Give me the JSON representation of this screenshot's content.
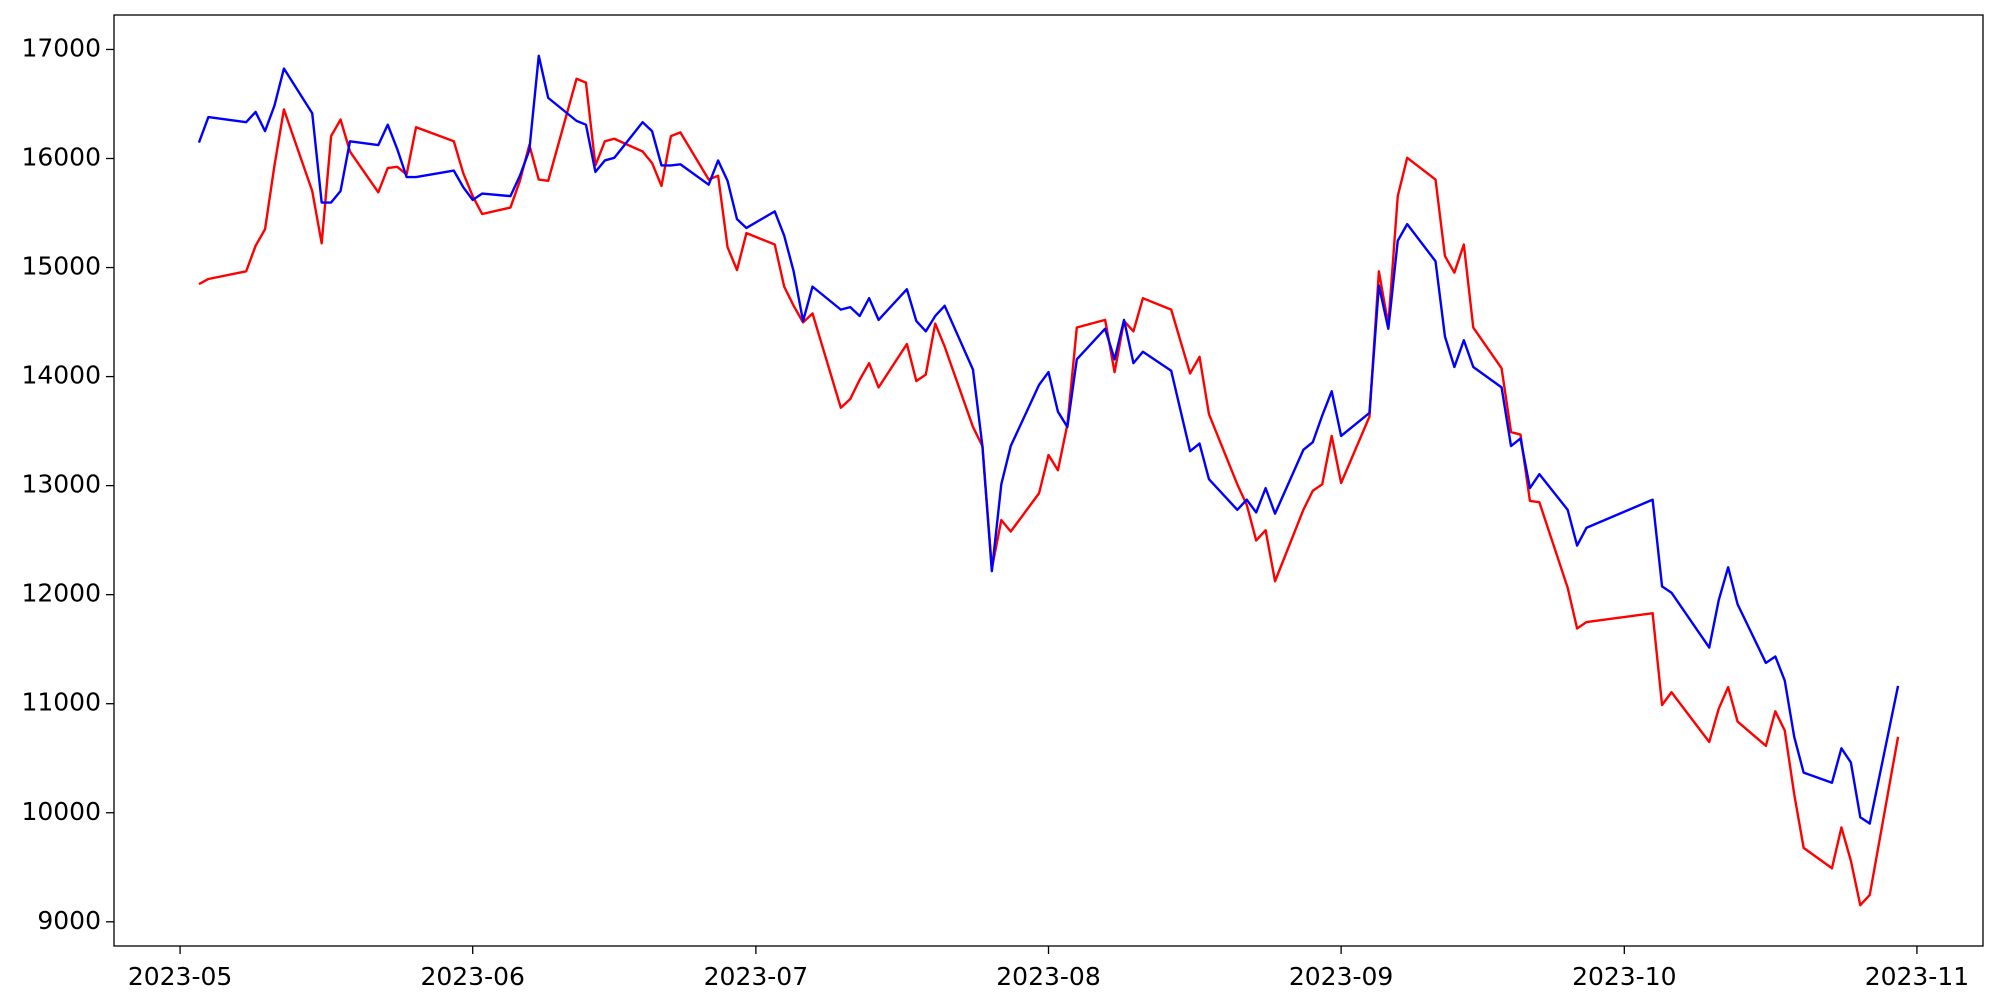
{
  "chart_data": {
    "type": "line",
    "x": [
      "2023-05-03",
      "2023-05-04",
      "2023-05-08",
      "2023-05-09",
      "2023-05-10",
      "2023-05-11",
      "2023-05-12",
      "2023-05-15",
      "2023-05-16",
      "2023-05-17",
      "2023-05-18",
      "2023-05-19",
      "2023-05-22",
      "2023-05-23",
      "2023-05-24",
      "2023-05-25",
      "2023-05-26",
      "2023-05-30",
      "2023-05-31",
      "2023-06-01",
      "2023-06-02",
      "2023-06-05",
      "2023-06-06",
      "2023-06-07",
      "2023-06-08",
      "2023-06-09",
      "2023-06-12",
      "2023-06-13",
      "2023-06-14",
      "2023-06-15",
      "2023-06-16",
      "2023-06-19",
      "2023-06-20",
      "2023-06-21",
      "2023-06-22",
      "2023-06-23",
      "2023-06-26",
      "2023-06-27",
      "2023-06-28",
      "2023-06-29",
      "2023-06-30",
      "2023-07-03",
      "2023-07-04",
      "2023-07-05",
      "2023-07-06",
      "2023-07-07",
      "2023-07-10",
      "2023-07-11",
      "2023-07-12",
      "2023-07-13",
      "2023-07-14",
      "2023-07-17",
      "2023-07-18",
      "2023-07-19",
      "2023-07-20",
      "2023-07-21",
      "2023-07-24",
      "2023-07-25",
      "2023-07-26",
      "2023-07-27",
      "2023-07-28",
      "2023-07-31",
      "2023-08-01",
      "2023-08-02",
      "2023-08-03",
      "2023-08-04",
      "2023-08-07",
      "2023-08-08",
      "2023-08-09",
      "2023-08-10",
      "2023-08-11",
      "2023-08-14",
      "2023-08-16",
      "2023-08-17",
      "2023-08-18",
      "2023-08-21",
      "2023-08-22",
      "2023-08-23",
      "2023-08-24",
      "2023-08-25",
      "2023-08-28",
      "2023-08-29",
      "2023-08-30",
      "2023-08-31",
      "2023-09-01",
      "2023-09-04",
      "2023-09-05",
      "2023-09-06",
      "2023-09-07",
      "2023-09-08",
      "2023-09-11",
      "2023-09-12",
      "2023-09-13",
      "2023-09-14",
      "2023-09-15",
      "2023-09-18",
      "2023-09-19",
      "2023-09-20",
      "2023-09-21",
      "2023-09-22",
      "2023-09-25",
      "2023-09-26",
      "2023-09-27",
      "2023-10-04",
      "2023-10-05",
      "2023-10-06",
      "2023-10-10",
      "2023-10-11",
      "2023-10-12",
      "2023-10-13",
      "2023-10-16",
      "2023-10-17",
      "2023-10-18",
      "2023-10-19",
      "2023-10-20",
      "2023-10-23",
      "2023-10-24",
      "2023-10-25",
      "2023-10-26",
      "2023-10-27",
      "2023-10-30"
    ],
    "series": [
      {
        "color": "#ff0000",
        "values": [
          14848,
          14895,
          14965,
          15199,
          15351,
          15936,
          16450,
          15702,
          15222,
          16205,
          16357,
          16064,
          15690,
          15912,
          15924,
          15854,
          16287,
          16158,
          15865,
          15655,
          15491,
          15550,
          15795,
          16123,
          15807,
          15795,
          16731,
          16696,
          15936,
          16158,
          16181,
          16064,
          15959,
          15749,
          16205,
          16240,
          15807,
          15842,
          15187,
          14977,
          15316,
          15211,
          14825,
          14649,
          14497,
          14579,
          13714,
          13795,
          13971,
          14123,
          13901,
          14298,
          13959,
          14018,
          14486,
          14275,
          13538,
          13363,
          12240,
          12684,
          12579,
          12930,
          13281,
          13141,
          13561,
          14450,
          14520,
          14041,
          14509,
          14415,
          14719,
          14614,
          14029,
          14181,
          13655,
          13012,
          12825,
          12497,
          12591,
          12123,
          12778,
          12953,
          13012,
          13456,
          13024,
          13632,
          14965,
          14474,
          15655,
          16006,
          15807,
          15105,
          14953,
          15211,
          14450,
          14076,
          13491,
          13468,
          12860,
          12848,
          12064,
          11690,
          11749,
          11830,
          10988,
          11105,
          10649,
          10953,
          11152,
          10836,
          10614,
          10930,
          10754,
          10170,
          9678,
          9491,
          9865,
          9561,
          9152,
          9246,
          10696
        ]
      },
      {
        "color": "#0000ff",
        "values": [
          16146,
          16380,
          16333,
          16427,
          16251,
          16485,
          16825,
          16415,
          15596,
          15596,
          15702,
          16158,
          16123,
          16310,
          16088,
          15830,
          15830,
          15889,
          15737,
          15620,
          15678,
          15655,
          15842,
          16076,
          16942,
          16556,
          16345,
          16310,
          15877,
          15982,
          16006,
          16333,
          16251,
          15936,
          15936,
          15947,
          15760,
          15982,
          15795,
          15444,
          15363,
          15515,
          15292,
          14965,
          14509,
          14825,
          14614,
          14637,
          14556,
          14719,
          14520,
          14801,
          14509,
          14415,
          14556,
          14649,
          14064,
          13363,
          12216,
          13012,
          13363,
          13924,
          14041,
          13678,
          13538,
          14158,
          14439,
          14158,
          14520,
          14123,
          14228,
          14053,
          13316,
          13386,
          13059,
          12778,
          12871,
          12754,
          12977,
          12743,
          13328,
          13398,
          13643,
          13865,
          13456,
          13667,
          14836,
          14439,
          15246,
          15398,
          15058,
          14368,
          14088,
          14333,
          14088,
          13901,
          13363,
          13433,
          12977,
          13105,
          12778,
          12450,
          12614,
          12871,
          12076,
          12018,
          11515,
          11948,
          12251,
          11912,
          11374,
          11433,
          11211,
          10696,
          10368,
          10275,
          10591,
          10462,
          9959,
          9901,
          11164
        ]
      }
    ],
    "xlim": [
      "2023-04-24",
      "2023-11-08"
    ],
    "xticks": [
      "2023-05",
      "2023-06",
      "2023-07",
      "2023-08",
      "2023-09",
      "2023-10",
      "2023-11"
    ],
    "ylim": [
      8778,
      17316
    ],
    "yticks": [
      9000,
      10000,
      11000,
      12000,
      13000,
      14000,
      15000,
      16000,
      17000
    ],
    "grid": false
  }
}
